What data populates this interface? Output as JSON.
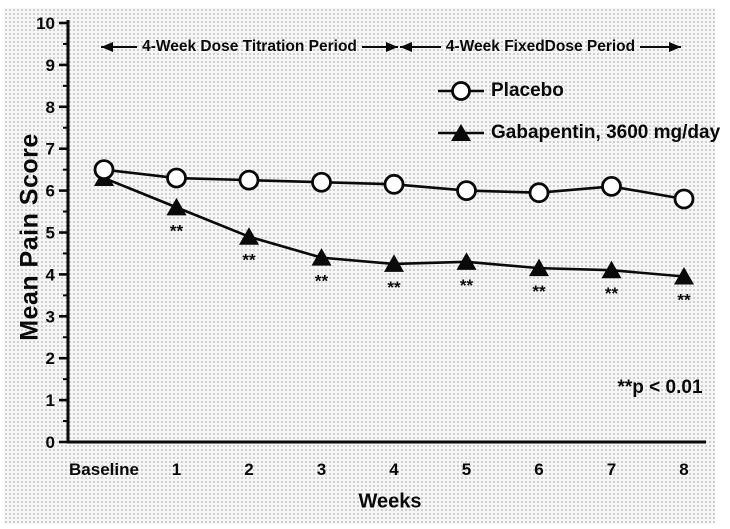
{
  "figure": {
    "significance_note": "**p < 0.01",
    "significance_symbol": "**"
  },
  "y_axis": {
    "title": "Mean Pain Score",
    "min": 0,
    "max": 10,
    "major_step": 1,
    "minor_step": 0.5,
    "tick_labels": [
      "0",
      "1",
      "2",
      "3",
      "4",
      "5",
      "6",
      "7",
      "8",
      "9",
      "10"
    ]
  },
  "x_axis": {
    "title": "Weeks",
    "tick_labels": [
      "Baseline",
      "1",
      "2",
      "3",
      "4",
      "5",
      "6",
      "7",
      "8"
    ]
  },
  "period_annotations": [
    {
      "label": "4-Week Dose Titration Period"
    },
    {
      "label": "4-Week FixedDose Period"
    }
  ],
  "legend": [
    {
      "label": "Placebo",
      "marker": "open-circle"
    },
    {
      "label": "Gabapentin, 3600 mg/day",
      "marker": "filled-triangle"
    }
  ],
  "colors": {
    "ink": "#0a0a0a",
    "paper": "#ffffff",
    "dot_grid": "#c2c2c2",
    "plot_bg": "#f6f6f6"
  },
  "chart_data": {
    "type": "line",
    "title": "",
    "xlabel": "Weeks",
    "ylabel": "Mean Pain Score",
    "ylim": [
      0,
      10
    ],
    "grid": false,
    "legend_position": "upper-right-inside",
    "categories": [
      "Baseline",
      "1",
      "2",
      "3",
      "4",
      "5",
      "6",
      "7",
      "8"
    ],
    "series": [
      {
        "name": "Placebo",
        "marker": "open-circle",
        "values": [
          6.5,
          6.3,
          6.25,
          6.2,
          6.15,
          6.0,
          5.95,
          6.1,
          5.8
        ]
      },
      {
        "name": "Gabapentin, 3600 mg/day",
        "marker": "filled-triangle",
        "values": [
          6.3,
          5.6,
          4.9,
          4.4,
          4.25,
          4.3,
          4.15,
          4.1,
          3.95
        ],
        "significance": [
          null,
          "**",
          "**",
          "**",
          "**",
          "**",
          "**",
          "**",
          "**"
        ]
      }
    ],
    "annotations": [
      {
        "text": "4-Week Dose Titration Period",
        "span_categories": [
          "Baseline",
          "4"
        ],
        "y": 9.4
      },
      {
        "text": "4-Week FixedDose Period",
        "span_categories": [
          "4",
          "8"
        ],
        "y": 9.4
      },
      {
        "text": "**p < 0.01",
        "near_category": "7.7",
        "y": 1.3
      }
    ]
  }
}
